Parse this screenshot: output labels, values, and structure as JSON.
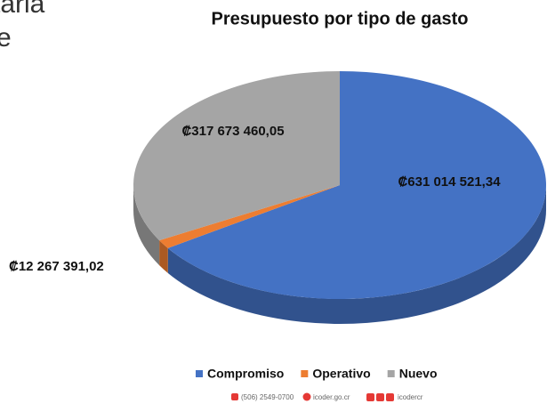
{
  "background_text": [
    "taria",
    "e"
  ],
  "chart_data": {
    "type": "pie3d",
    "title": "Presupuesto por tipo de gasto",
    "categories": [
      "Compromiso",
      "Operativo",
      "Nuevo"
    ],
    "values": [
      631014521.34,
      12267391.02,
      317673460.05
    ],
    "value_labels": [
      "₡631 014 521,34",
      "₡12 267 391,02",
      "₡317 673 460,05"
    ],
    "colors": [
      "#4472c4",
      "#ed7d31",
      "#a5a5a5"
    ],
    "legend": "bottom"
  },
  "footer": {
    "phone": "(506) 2549-0700",
    "web": "icoder.go.cr",
    "social": "icodercr"
  }
}
